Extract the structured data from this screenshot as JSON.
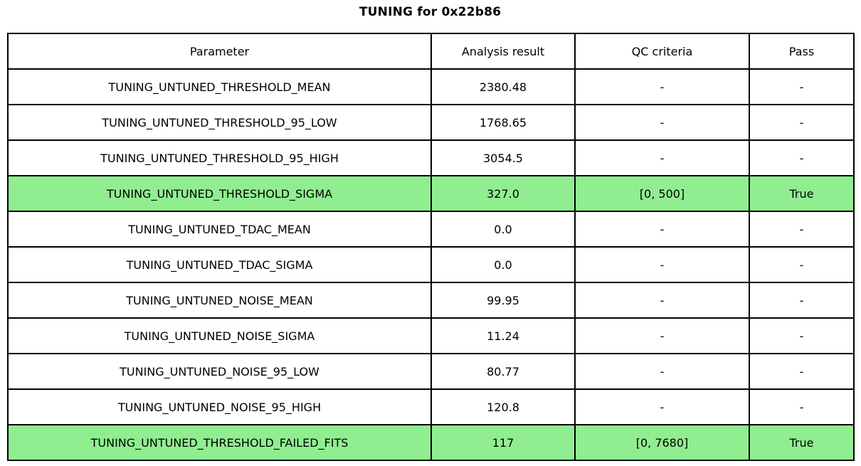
{
  "chart_data": {
    "type": "table",
    "title": "TUNING for 0x22b86",
    "columns": [
      "Parameter",
      "Analysis result",
      "QC criteria",
      "Pass"
    ],
    "rows": [
      {
        "parameter": "TUNING_UNTUNED_THRESHOLD_MEAN",
        "result": "2380.48",
        "qc": "-",
        "pass": "-",
        "highlight": false
      },
      {
        "parameter": "TUNING_UNTUNED_THRESHOLD_95_LOW",
        "result": "1768.65",
        "qc": "-",
        "pass": "-",
        "highlight": false
      },
      {
        "parameter": "TUNING_UNTUNED_THRESHOLD_95_HIGH",
        "result": "3054.5",
        "qc": "-",
        "pass": "-",
        "highlight": false
      },
      {
        "parameter": "TUNING_UNTUNED_THRESHOLD_SIGMA",
        "result": "327.0",
        "qc": "[0, 500]",
        "pass": "True",
        "highlight": true
      },
      {
        "parameter": "TUNING_UNTUNED_TDAC_MEAN",
        "result": "0.0",
        "qc": "-",
        "pass": "-",
        "highlight": false
      },
      {
        "parameter": "TUNING_UNTUNED_TDAC_SIGMA",
        "result": "0.0",
        "qc": "-",
        "pass": "-",
        "highlight": false
      },
      {
        "parameter": "TUNING_UNTUNED_NOISE_MEAN",
        "result": "99.95",
        "qc": "-",
        "pass": "-",
        "highlight": false
      },
      {
        "parameter": "TUNING_UNTUNED_NOISE_SIGMA",
        "result": "11.24",
        "qc": "-",
        "pass": "-",
        "highlight": false
      },
      {
        "parameter": "TUNING_UNTUNED_NOISE_95_LOW",
        "result": "80.77",
        "qc": "-",
        "pass": "-",
        "highlight": false
      },
      {
        "parameter": "TUNING_UNTUNED_NOISE_95_HIGH",
        "result": "120.8",
        "qc": "-",
        "pass": "-",
        "highlight": false
      },
      {
        "parameter": "TUNING_UNTUNED_THRESHOLD_FAILED_FITS",
        "result": "117",
        "qc": "[0, 7680]",
        "pass": "True",
        "highlight": true
      }
    ],
    "layout": {
      "highlight_color": "#90EE90",
      "border_color": "#000000",
      "background_color": "#ffffff",
      "legend": "rows with QC criteria that pass are highlighted green"
    }
  }
}
